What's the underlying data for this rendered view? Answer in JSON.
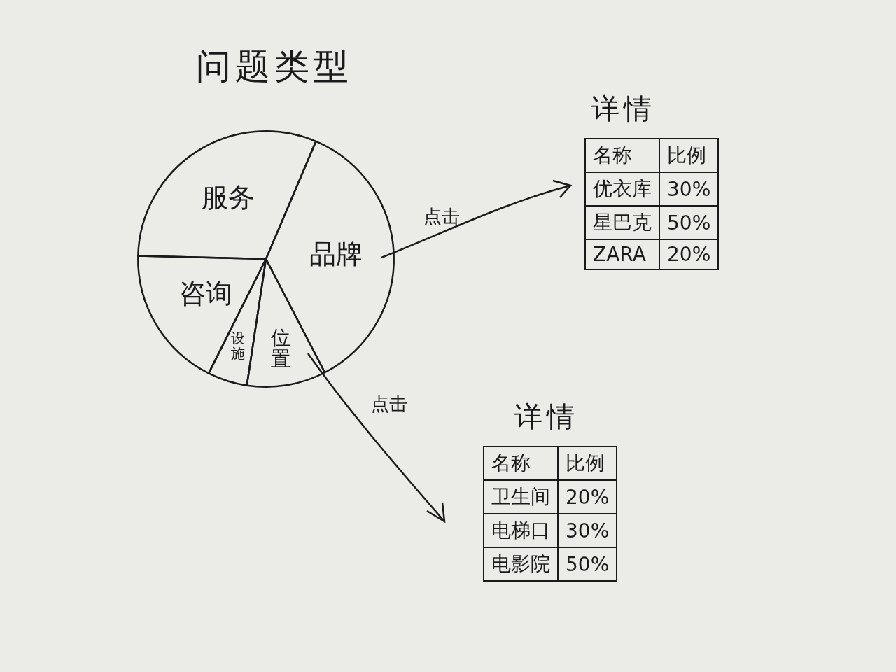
{
  "chart_data": {
    "type": "pie",
    "title": "问题类型",
    "categories": [
      "品牌",
      "位置",
      "设施",
      "咨询",
      "服务"
    ],
    "values": [
      36,
      10,
      5,
      18,
      31
    ]
  },
  "details": [
    {
      "title": "详情",
      "header": [
        "名称",
        "比例"
      ],
      "rows": [
        [
          "优衣库",
          "30%"
        ],
        [
          "星巴克",
          "50%"
        ],
        [
          "ZARA",
          "20%"
        ]
      ]
    },
    {
      "title": "详情",
      "header": [
        "名称",
        "比例"
      ],
      "rows": [
        [
          "卫生间",
          "20%"
        ],
        [
          "电梯口",
          "30%"
        ],
        [
          "电影院",
          "50%"
        ]
      ]
    }
  ],
  "links": [
    {
      "from": "品牌",
      "to": 0,
      "label": "点击"
    },
    {
      "from": "位置",
      "to": 1,
      "label": "点击"
    }
  ]
}
